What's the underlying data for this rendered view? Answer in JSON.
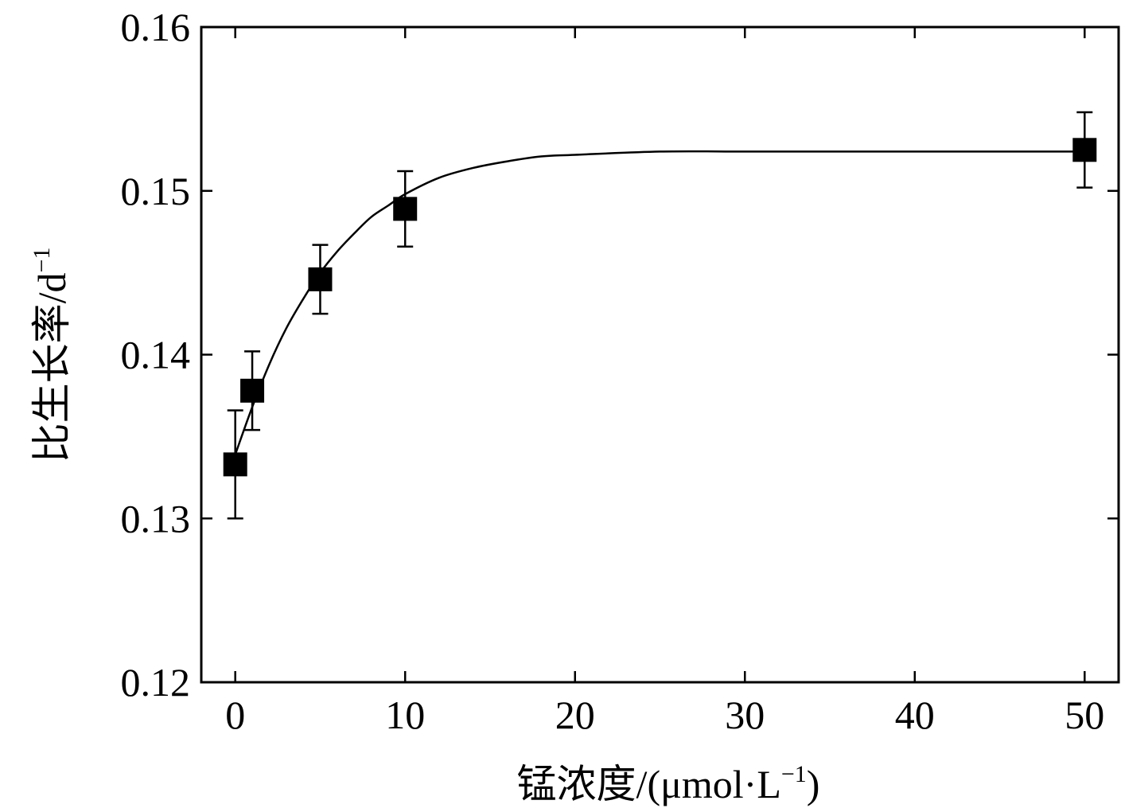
{
  "chart_data": {
    "type": "scatter",
    "title": "",
    "xlabel": "锰浓度/(μmol·L",
    "xlabel_sup": "−1",
    "xlabel_suffix": ")",
    "ylabel": "比生长率/d",
    "ylabel_sup": "−1",
    "xlim": [
      -2,
      52
    ],
    "ylim": [
      0.12,
      0.16
    ],
    "xticks": [
      0,
      10,
      20,
      30,
      40,
      50
    ],
    "xtick_labels": [
      "0",
      "10",
      "20",
      "30",
      "40",
      "50"
    ],
    "yticks": [
      0.12,
      0.13,
      0.14,
      0.15,
      0.16
    ],
    "ytick_labels": [
      "0.12",
      "0.13",
      "0.14",
      "0.15",
      "0.16"
    ],
    "grid": false,
    "legend": "none",
    "marker": "filled-square",
    "color": "#000000",
    "series": [
      {
        "x": [
          0,
          1,
          5,
          10,
          50
        ],
        "y": [
          0.1333,
          0.1378,
          0.1446,
          0.1489,
          0.1525
        ],
        "error": [
          0.0033,
          0.0024,
          0.0021,
          0.0023,
          0.0023
        ]
      }
    ],
    "fit_curve": {
      "type": "exponential-saturation",
      "x": [
        0,
        1,
        2,
        3,
        4,
        5,
        6,
        7,
        8,
        9,
        10,
        12,
        14,
        16,
        18,
        20,
        25,
        30,
        35,
        40,
        45,
        50
      ],
      "y": [
        0.1339,
        0.1368,
        0.1394,
        0.1416,
        0.1434,
        0.145,
        0.1463,
        0.1474,
        0.1484,
        0.1491,
        0.1498,
        0.1508,
        0.1514,
        0.1518,
        0.1521,
        0.1522,
        0.1524,
        0.1524,
        0.1524,
        0.1524,
        0.1524,
        0.1524
      ]
    }
  }
}
